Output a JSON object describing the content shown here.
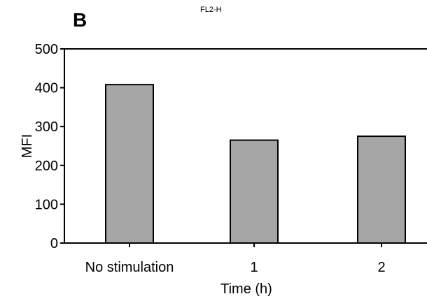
{
  "panel_label": "B",
  "subtitle": "FL2-H",
  "chart_data": {
    "type": "bar",
    "title": "",
    "categories": [
      "No stimulation",
      "1",
      "2"
    ],
    "values": [
      408,
      265,
      275
    ],
    "xlabel": "Time (h)",
    "ylabel": "MFI",
    "ylim": [
      0,
      500
    ],
    "yticks": [
      0,
      100,
      200,
      300,
      400,
      500
    ],
    "grid": false,
    "colors": {
      "bar_fill": "#a6a6a6",
      "bar_stroke": "#000000"
    }
  }
}
